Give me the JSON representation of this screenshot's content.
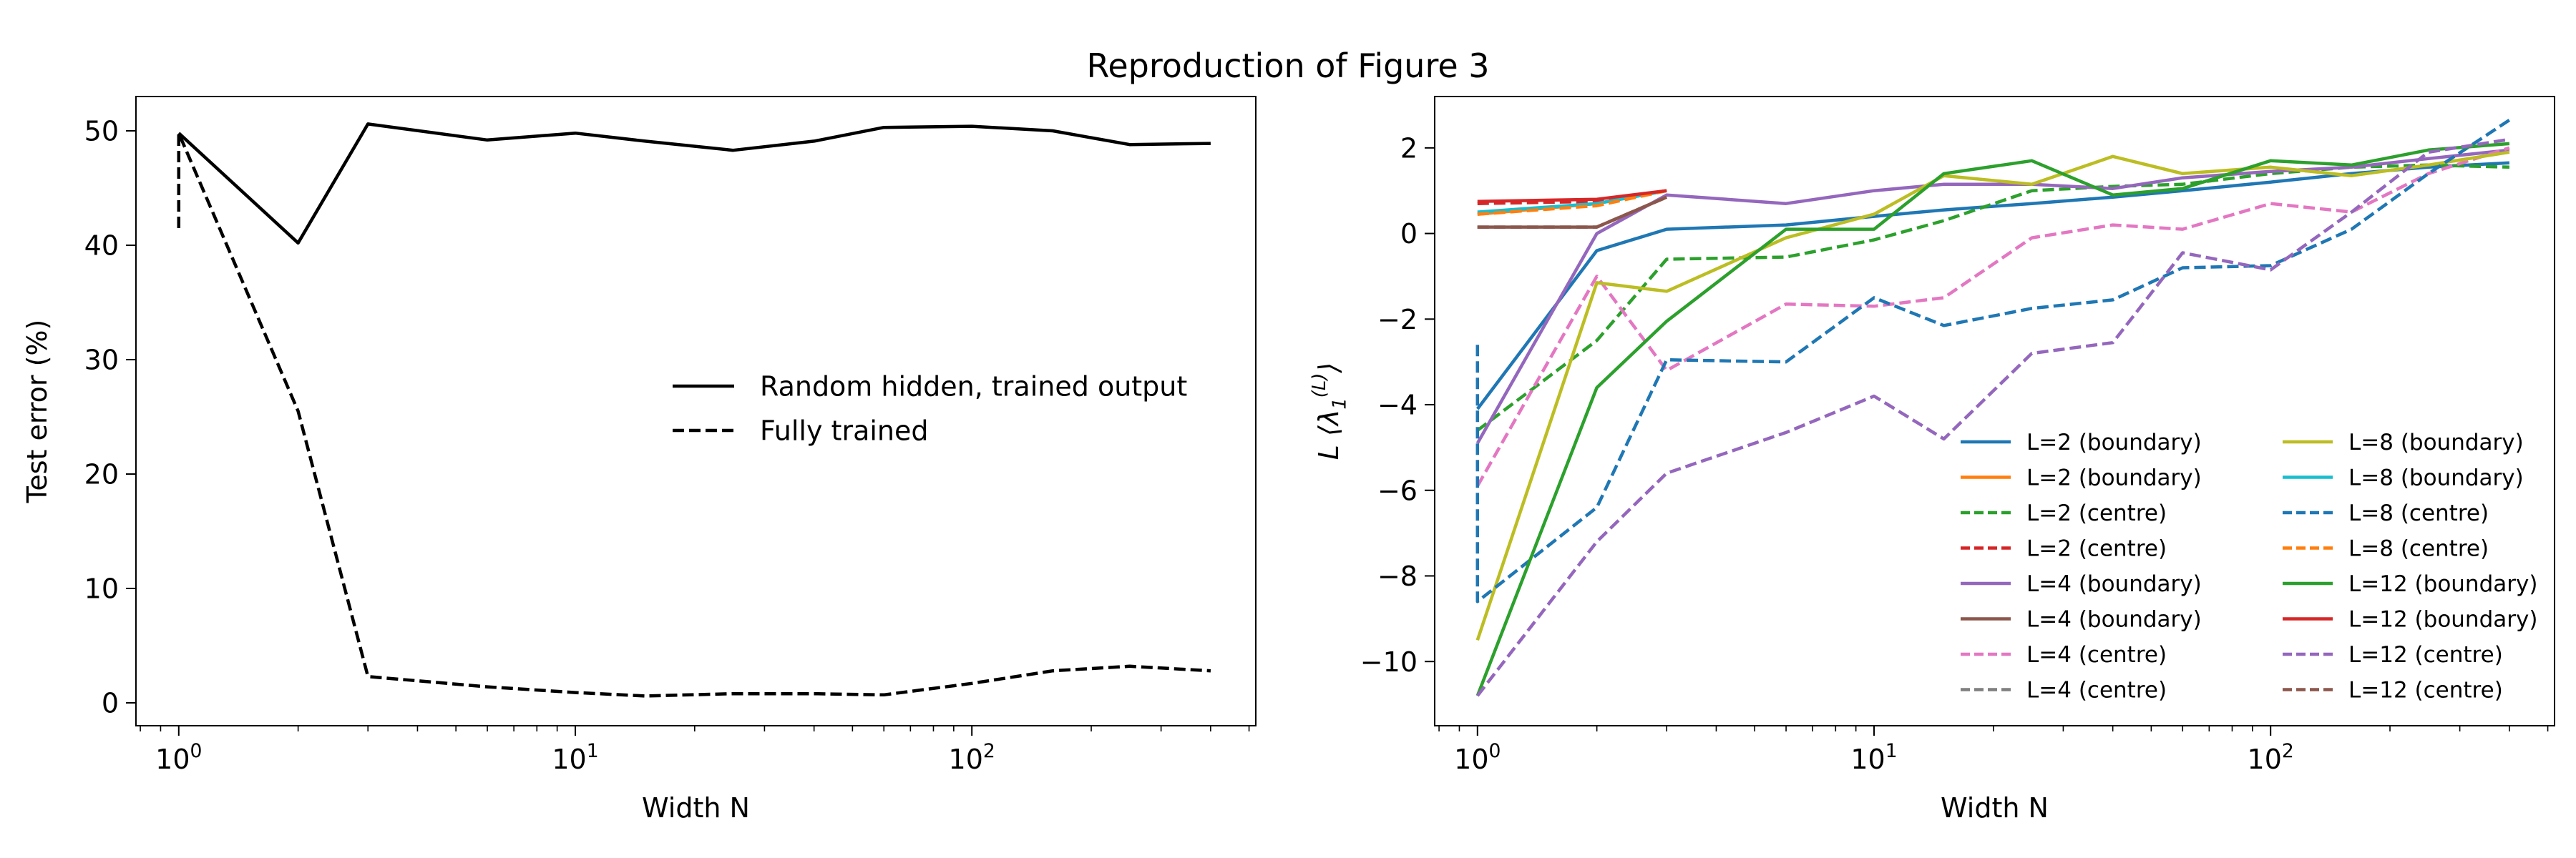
{
  "figure": {
    "suptitle": "Reproduction of Figure 3"
  },
  "chart_data": [
    {
      "type": "line",
      "xscale": "log",
      "xlim": [
        0.78,
        520
      ],
      "ylim": [
        -2,
        53
      ],
      "xlabel": "Width N",
      "ylabel": "Test error (%)",
      "yticks": [
        0,
        10,
        20,
        30,
        40,
        50
      ],
      "xticks": [
        1,
        10,
        100
      ],
      "xtick_labels": [
        {
          "base": "10",
          "exp": "0"
        },
        {
          "base": "10",
          "exp": "1"
        },
        {
          "base": "10",
          "exp": "2"
        }
      ],
      "legend_position": "center-right",
      "series": [
        {
          "name": "Random hidden, trained output",
          "color": "#000000",
          "dash": "solid",
          "x": [
            1,
            2,
            3,
            6,
            10,
            15,
            25,
            40,
            60,
            100,
            160,
            250,
            400
          ],
          "y": [
            49.8,
            40.2,
            50.6,
            49.2,
            49.8,
            49.1,
            48.3,
            49.1,
            50.3,
            50.4,
            50.0,
            48.8,
            48.9
          ]
        },
        {
          "name": "Fully trained",
          "color": "#000000",
          "dash": "dashed",
          "x": [
            1,
            1,
            2,
            3,
            6,
            10,
            15,
            25,
            40,
            60,
            100,
            160,
            250,
            400
          ],
          "y": [
            41.5,
            49.8,
            25.5,
            2.3,
            1.4,
            0.9,
            0.6,
            0.8,
            0.8,
            0.7,
            1.7,
            2.8,
            3.2,
            2.8
          ]
        }
      ]
    },
    {
      "type": "line",
      "xscale": "log",
      "xlim": [
        0.78,
        520
      ],
      "ylim": [
        -11.5,
        3.2
      ],
      "xlabel": "Width N",
      "ylabel": {
        "base": "L ⟨λ",
        "sub": "1",
        "sup": "(L)",
        "close": "⟩"
      },
      "yticks": [
        -10,
        -8,
        -6,
        -4,
        -2,
        0,
        2
      ],
      "xticks": [
        1,
        10,
        100
      ],
      "xtick_labels": [
        {
          "base": "10",
          "exp": "0"
        },
        {
          "base": "10",
          "exp": "1"
        },
        {
          "base": "10",
          "exp": "2"
        }
      ],
      "legend_position": "lower-right",
      "legend_columns": 2,
      "series": [
        {
          "name": "L=2 (boundary)",
          "color": "#1f77b4",
          "dash": "solid",
          "x": [
            1,
            2,
            3,
            6,
            10,
            15,
            25,
            40,
            60,
            100,
            160,
            250,
            400
          ],
          "y": [
            -4.1,
            -0.4,
            0.1,
            0.2,
            0.4,
            0.55,
            0.7,
            0.85,
            1.0,
            1.2,
            1.4,
            1.55,
            1.65
          ]
        },
        {
          "name": "L=2 (boundary)",
          "color": "#ff7f0e",
          "dash": "solid",
          "x": [
            1,
            2,
            3
          ],
          "y": [
            0.45,
            0.7,
            1.0
          ]
        },
        {
          "name": "L=2 (centre)",
          "color": "#2ca02c",
          "dash": "dashed",
          "x": [
            1,
            2,
            3,
            6,
            10,
            15,
            25,
            40,
            60,
            100,
            160,
            250,
            400
          ],
          "y": [
            -4.6,
            -2.5,
            -0.6,
            -0.55,
            -0.15,
            0.3,
            1.0,
            1.1,
            1.15,
            1.4,
            1.55,
            1.6,
            1.55
          ]
        },
        {
          "name": "L=2 (centre)",
          "color": "#d62728",
          "dash": "dashed",
          "x": [
            1,
            2,
            3
          ],
          "y": [
            0.7,
            0.75,
            1.0
          ]
        },
        {
          "name": "L=4 (boundary)",
          "color": "#9467bd",
          "dash": "solid",
          "x": [
            1,
            2,
            3,
            6,
            10,
            15,
            25,
            40,
            60,
            100,
            160,
            250,
            400
          ],
          "y": [
            -4.9,
            0.0,
            0.9,
            0.7,
            1.0,
            1.15,
            1.15,
            1.05,
            1.3,
            1.45,
            1.55,
            1.75,
            1.95
          ]
        },
        {
          "name": "L=4 (boundary)",
          "color": "#8c564b",
          "dash": "solid",
          "x": [
            1,
            2,
            3
          ],
          "y": [
            0.15,
            0.15,
            0.85
          ]
        },
        {
          "name": "L=4 (centre)",
          "color": "#e377c2",
          "dash": "dashed",
          "x": [
            1,
            2,
            3,
            6,
            10,
            15,
            25,
            40,
            60,
            100,
            160,
            250,
            400
          ],
          "y": [
            -5.9,
            -1.0,
            -3.2,
            -1.65,
            -1.7,
            -1.5,
            -0.1,
            0.2,
            0.1,
            0.7,
            0.5,
            1.4,
            2.0
          ]
        },
        {
          "name": "L=4 (centre)",
          "color": "#7f7f7f",
          "dash": "dashed",
          "x": [
            1,
            2,
            3
          ],
          "y": [
            0.15,
            0.15,
            0.85
          ]
        },
        {
          "name": "L=8 (boundary)",
          "color": "#bcbd22",
          "dash": "solid",
          "x": [
            1,
            2,
            3,
            6,
            10,
            15,
            25,
            40,
            60,
            100,
            160,
            250,
            400
          ],
          "y": [
            -9.5,
            -1.15,
            -1.35,
            -0.1,
            0.45,
            1.35,
            1.15,
            1.8,
            1.4,
            1.55,
            1.35,
            1.6,
            1.9
          ]
        },
        {
          "name": "L=8 (boundary)",
          "color": "#17becf",
          "dash": "solid",
          "x": [
            1,
            2,
            3
          ],
          "y": [
            0.5,
            0.7,
            1.0
          ]
        },
        {
          "name": "L=8 (centre)",
          "color": "#1f77b4",
          "dash": "dashed",
          "x": [
            1,
            1,
            2,
            3,
            6,
            10,
            15,
            25,
            40,
            60,
            100,
            160,
            250,
            400
          ],
          "y": [
            -2.6,
            -8.6,
            -6.4,
            -2.95,
            -3.0,
            -1.5,
            -2.15,
            -1.75,
            -1.55,
            -0.8,
            -0.75,
            0.1,
            1.4,
            2.65
          ]
        },
        {
          "name": "L=8 (centre)",
          "color": "#ff7f0e",
          "dash": "dashed",
          "x": [
            1,
            2,
            3
          ],
          "y": [
            0.45,
            0.65,
            1.0
          ]
        },
        {
          "name": "L=12 (boundary)",
          "color": "#2ca02c",
          "dash": "solid",
          "x": [
            1,
            2,
            3,
            6,
            10,
            15,
            25,
            40,
            60,
            100,
            160,
            250,
            400
          ],
          "y": [
            -10.8,
            -3.6,
            -2.05,
            0.1,
            0.1,
            1.4,
            1.7,
            0.9,
            1.05,
            1.7,
            1.6,
            1.95,
            2.1
          ]
        },
        {
          "name": "L=12 (boundary)",
          "color": "#d62728",
          "dash": "solid",
          "x": [
            1,
            2,
            3
          ],
          "y": [
            0.75,
            0.8,
            1.0
          ]
        },
        {
          "name": "L=12 (centre)",
          "color": "#9467bd",
          "dash": "dashed",
          "x": [
            1,
            2,
            3,
            6,
            10,
            15,
            25,
            40,
            60,
            100,
            160,
            250,
            400
          ],
          "y": [
            -10.8,
            -7.2,
            -5.6,
            -4.65,
            -3.8,
            -4.8,
            -2.8,
            -2.55,
            -0.45,
            -0.85,
            0.5,
            1.9,
            2.2
          ]
        },
        {
          "name": "L=12 (centre)",
          "color": "#8c564b",
          "dash": "dashed",
          "x": [
            1,
            2,
            3
          ],
          "y": [
            0.15,
            0.15,
            0.85
          ]
        }
      ]
    }
  ]
}
